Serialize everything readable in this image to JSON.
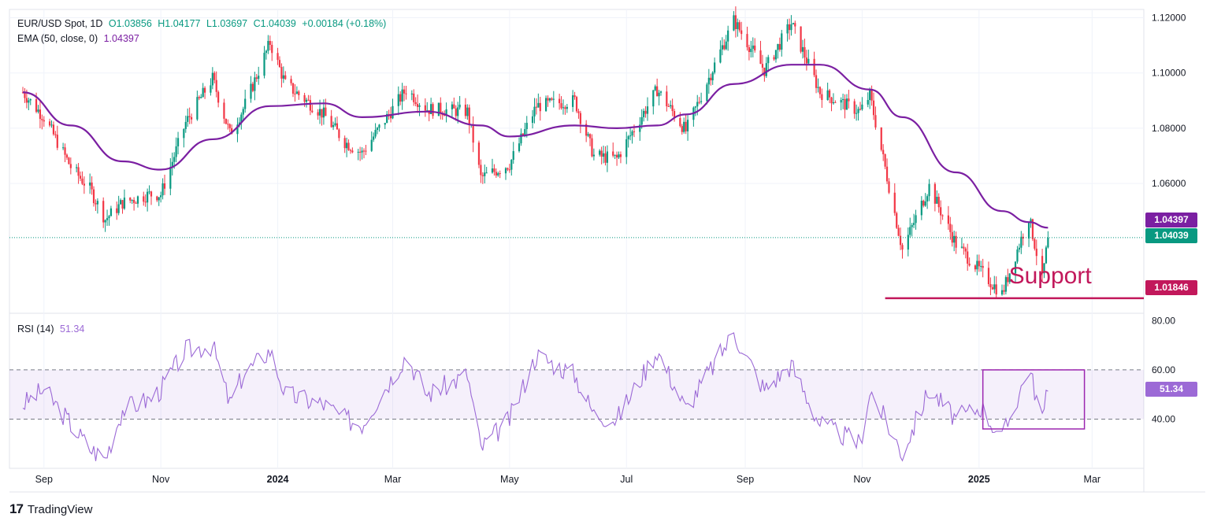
{
  "header": {
    "symbol": "EUR/USD Spot, 1D",
    "open": "O1.03856",
    "high": "H1.04177",
    "low": "L1.03697",
    "close": "C1.04039",
    "change": "+0.00184 (+0.18%)",
    "ema_label": "EMA (50, close, 0)",
    "ema_value": "1.04397"
  },
  "rsi_legend": {
    "label": "RSI (14)",
    "value": "51.34"
  },
  "badges": {
    "ema": "1.04397",
    "price": "1.04039",
    "support": "1.01846",
    "rsi": "51.34"
  },
  "annotation": {
    "support_text": "Support"
  },
  "brand": {
    "logo": "17",
    "name": "TradingView"
  },
  "colors": {
    "up": "#089981",
    "down": "#f23645",
    "ema": "#7b1fa2",
    "support": "#c2185b",
    "rsi": "#9c6ad6",
    "box": "#9c27b0"
  },
  "chart_data": [
    {
      "type": "candlestick",
      "title": "EUR/USD Spot, 1D",
      "x_labels": [
        "Sep",
        "Nov",
        "2024",
        "Mar",
        "May",
        "Jul",
        "Sep",
        "Nov",
        "2025",
        "Mar"
      ],
      "y_ticks": [
        "1.12000",
        "1.10000",
        "1.08000",
        "1.06000"
      ],
      "ylim": [
        1.013,
        1.123
      ],
      "price_path": [
        [
          "2023-08-21",
          1.093
        ],
        [
          "2023-09-01",
          1.084
        ],
        [
          "2023-09-15",
          1.066
        ],
        [
          "2023-09-25",
          1.058
        ],
        [
          "2023-10-03",
          1.047
        ],
        [
          "2023-10-12",
          1.053
        ],
        [
          "2023-10-26",
          1.056
        ],
        [
          "2023-11-01",
          1.056
        ],
        [
          "2023-11-14",
          1.082
        ],
        [
          "2023-11-28",
          1.098
        ],
        [
          "2023-12-07",
          1.078
        ],
        [
          "2023-12-14",
          1.087
        ],
        [
          "2023-12-28",
          1.111
        ],
        [
          "2024-01-05",
          1.096
        ],
        [
          "2024-01-25",
          1.085
        ],
        [
          "2024-02-05",
          1.075
        ],
        [
          "2024-02-14",
          1.071
        ],
        [
          "2024-03-08",
          1.094
        ],
        [
          "2024-03-19",
          1.087
        ],
        [
          "2024-04-09",
          1.086
        ],
        [
          "2024-04-16",
          1.062
        ],
        [
          "2024-05-01",
          1.067
        ],
        [
          "2024-05-15",
          1.088
        ],
        [
          "2024-06-04",
          1.09
        ],
        [
          "2024-06-14",
          1.07
        ],
        [
          "2024-06-26",
          1.069
        ],
        [
          "2024-07-17",
          1.094
        ],
        [
          "2024-08-01",
          1.079
        ],
        [
          "2024-08-26",
          1.119
        ],
        [
          "2024-09-11",
          1.101
        ],
        [
          "2024-09-25",
          1.118
        ],
        [
          "2024-10-10",
          1.093
        ],
        [
          "2024-10-31",
          1.086
        ],
        [
          "2024-11-05",
          1.092
        ],
        [
          "2024-11-22",
          1.036
        ],
        [
          "2024-12-06",
          1.059
        ],
        [
          "2024-12-20",
          1.038
        ],
        [
          "2025-01-02",
          1.028
        ],
        [
          "2025-01-13",
          1.02
        ],
        [
          "2025-01-27",
          1.048
        ],
        [
          "2025-02-03",
          1.025
        ],
        [
          "2025-02-06",
          1.04039
        ]
      ],
      "ema_50": {
        "label": "EMA (50, close, 0)",
        "last": 1.04397,
        "path": [
          [
            "2023-08-21",
            1.093
          ],
          [
            "2023-09-15",
            1.081
          ],
          [
            "2023-10-12",
            1.068
          ],
          [
            "2023-11-01",
            1.065
          ],
          [
            "2023-11-28",
            1.076
          ],
          [
            "2023-12-28",
            1.088
          ],
          [
            "2024-01-25",
            1.089
          ],
          [
            "2024-02-14",
            1.084
          ],
          [
            "2024-03-19",
            1.086
          ],
          [
            "2024-04-16",
            1.081
          ],
          [
            "2024-05-01",
            1.077
          ],
          [
            "2024-06-04",
            1.081
          ],
          [
            "2024-06-26",
            1.08
          ],
          [
            "2024-07-17",
            1.081
          ],
          [
            "2024-08-01",
            1.085
          ],
          [
            "2024-08-26",
            1.096
          ],
          [
            "2024-09-25",
            1.103
          ],
          [
            "2024-10-10",
            1.103
          ],
          [
            "2024-11-05",
            1.094
          ],
          [
            "2024-11-22",
            1.084
          ],
          [
            "2024-12-20",
            1.064
          ],
          [
            "2025-01-13",
            1.05
          ],
          [
            "2025-01-27",
            1.046
          ],
          [
            "2025-02-06",
            1.04397
          ]
        ]
      },
      "last_close": 1.04039,
      "support_level": {
        "label": "Support",
        "value": 1.01846,
        "from": "2024-11-13"
      }
    },
    {
      "type": "line",
      "title": "RSI (14)",
      "last": 51.34,
      "y_ticks": [
        "80.00",
        "60.00",
        "40.00"
      ],
      "ylim": [
        20,
        83
      ],
      "band": [
        40,
        60
      ],
      "path": [
        [
          "2023-08-21",
          46
        ],
        [
          "2023-09-01",
          52
        ],
        [
          "2023-09-15",
          38
        ],
        [
          "2023-09-25",
          28
        ],
        [
          "2023-10-03",
          24
        ],
        [
          "2023-10-12",
          44
        ],
        [
          "2023-10-26",
          48
        ],
        [
          "2023-11-01",
          52
        ],
        [
          "2023-11-14",
          68
        ],
        [
          "2023-11-28",
          70
        ],
        [
          "2023-12-07",
          46
        ],
        [
          "2023-12-14",
          58
        ],
        [
          "2023-12-28",
          68
        ],
        [
          "2024-01-05",
          50
        ],
        [
          "2024-01-25",
          46
        ],
        [
          "2024-02-05",
          40
        ],
        [
          "2024-02-14",
          38
        ],
        [
          "2024-03-08",
          66
        ],
        [
          "2024-03-19",
          50
        ],
        [
          "2024-04-09",
          58
        ],
        [
          "2024-04-16",
          28
        ],
        [
          "2024-05-01",
          40
        ],
        [
          "2024-05-15",
          66
        ],
        [
          "2024-06-04",
          58
        ],
        [
          "2024-06-14",
          42
        ],
        [
          "2024-06-26",
          40
        ],
        [
          "2024-07-17",
          68
        ],
        [
          "2024-08-01",
          44
        ],
        [
          "2024-08-26",
          75
        ],
        [
          "2024-09-11",
          52
        ],
        [
          "2024-09-25",
          62
        ],
        [
          "2024-10-10",
          38
        ],
        [
          "2024-10-31",
          30
        ],
        [
          "2024-11-05",
          52
        ],
        [
          "2024-11-22",
          26
        ],
        [
          "2024-12-06",
          52
        ],
        [
          "2024-12-20",
          40
        ],
        [
          "2025-01-02",
          45
        ],
        [
          "2025-01-13",
          32
        ],
        [
          "2025-01-27",
          61
        ],
        [
          "2025-02-03",
          40
        ],
        [
          "2025-02-06",
          51.34
        ]
      ],
      "highlight_box": {
        "from": "2025-01-03",
        "to": "2025-02-25",
        "top": 60,
        "bottom": 36
      }
    }
  ]
}
